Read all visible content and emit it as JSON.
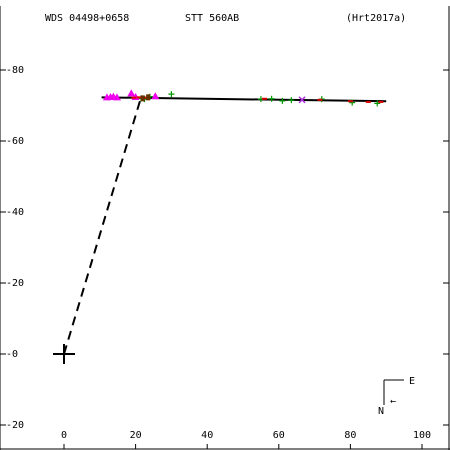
{
  "header": {
    "wds": "WDS 04498+0658",
    "pair": "STT 560AB",
    "reference": "(Hrt2017a)"
  },
  "chart_data": {
    "type": "scatter",
    "title": "STT 560AB",
    "xlim": [
      -15,
      107
    ],
    "ylim": [
      -22.5,
      97
    ],
    "x_ticks": [
      0,
      20,
      40,
      60,
      80,
      100
    ],
    "y_ticks": [
      -20,
      0,
      20,
      40,
      60,
      80
    ],
    "x_tick_labels": [
      "0",
      "20",
      "40",
      "60",
      "80",
      "100"
    ],
    "y_tick_labels": [
      "-20",
      "-0",
      "-20",
      "-40",
      "-60",
      "-80"
    ],
    "primary": {
      "x": 0,
      "y": 0
    },
    "orbit_line": {
      "x": [
        10.5,
        90
      ],
      "y": [
        72.3,
        71.2
      ]
    },
    "leader_line": {
      "x": [
        0,
        21.5
      ],
      "y": [
        0,
        72.2
      ]
    },
    "series": [
      {
        "marker": "plus",
        "color": "#009900",
        "points": [
          [
            21.5,
            72.0
          ],
          [
            22.5,
            71.8
          ],
          [
            24.0,
            72.5
          ],
          [
            30.0,
            73.2
          ],
          [
            55.0,
            71.8
          ],
          [
            58.0,
            71.9
          ],
          [
            61.0,
            71.3
          ],
          [
            63.5,
            71.5
          ],
          [
            72.0,
            71.8
          ],
          [
            80.5,
            70.8
          ],
          [
            87.5,
            70.6
          ]
        ]
      },
      {
        "marker": "triangle",
        "color": "#ee00ee",
        "points": [
          [
            12.0,
            72.3
          ],
          [
            13.0,
            72.4
          ],
          [
            13.8,
            72.5
          ],
          [
            14.8,
            72.3
          ],
          [
            18.8,
            73.4
          ],
          [
            20.0,
            72.4
          ],
          [
            25.5,
            72.6
          ]
        ]
      },
      {
        "marker": "x",
        "color": "#aa33dd",
        "points": [
          [
            66.5,
            71.6
          ]
        ]
      },
      {
        "marker": "dash",
        "color": "#dd0000",
        "points": [
          [
            19.5,
            72.2
          ],
          [
            21.0,
            72.3
          ],
          [
            23.0,
            72.2
          ],
          [
            56.0,
            71.9
          ],
          [
            71.5,
            71.6
          ],
          [
            80.0,
            71.2
          ],
          [
            85.0,
            71.0
          ],
          [
            88.5,
            71.0
          ]
        ]
      },
      {
        "marker": "square",
        "color": "#663300",
        "points": [
          [
            22.0,
            72.0
          ],
          [
            23.5,
            72.3
          ]
        ]
      }
    ],
    "grid": false
  },
  "compass": {
    "east": "E",
    "north": "N",
    "arrow": "←"
  }
}
